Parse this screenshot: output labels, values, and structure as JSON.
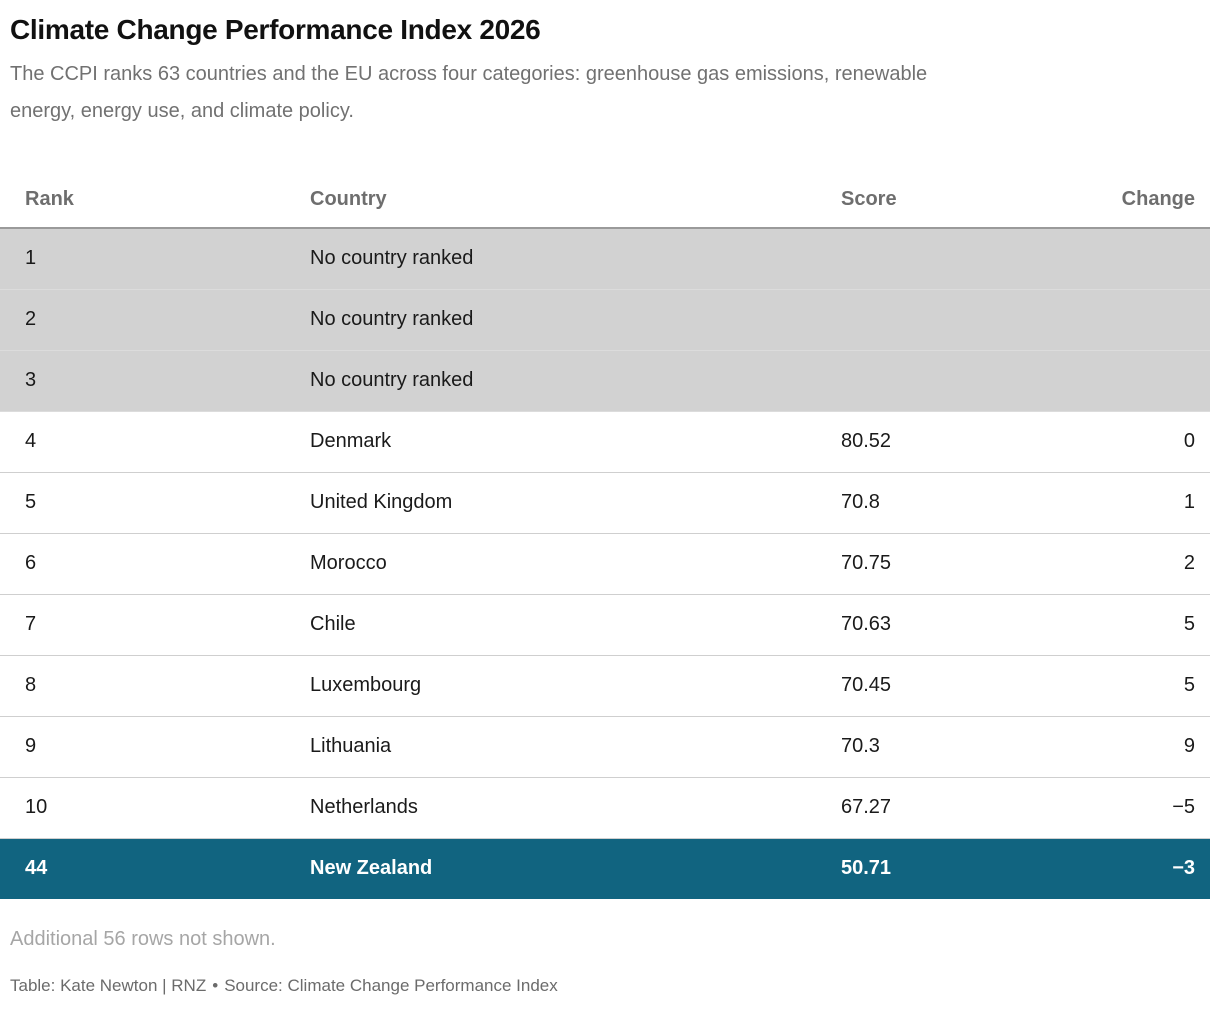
{
  "header": {
    "title": "Climate Change Performance Index 2026",
    "subtitle_lines": [
      "The CCPI ranks 63 countries and the EU across four categories: greenhouse gas emissions, renewable",
      "energy, energy use, and climate policy."
    ]
  },
  "chart_data": {
    "type": "table",
    "title": "Climate Change Performance Index 2026",
    "columns": [
      "Rank",
      "Country",
      "Score",
      "Change"
    ],
    "rows": [
      {
        "rank": "1",
        "country": "No country ranked",
        "score": "",
        "change": "",
        "style": "unranked"
      },
      {
        "rank": "2",
        "country": "No country ranked",
        "score": "",
        "change": "",
        "style": "unranked"
      },
      {
        "rank": "3",
        "country": "No country ranked",
        "score": "",
        "change": "",
        "style": "unranked"
      },
      {
        "rank": "4",
        "country": "Denmark",
        "score": "80.52",
        "change": "0",
        "style": "normal"
      },
      {
        "rank": "5",
        "country": "United Kingdom",
        "score": "70.8",
        "change": "1",
        "style": "normal"
      },
      {
        "rank": "6",
        "country": "Morocco",
        "score": "70.75",
        "change": "2",
        "style": "normal"
      },
      {
        "rank": "7",
        "country": "Chile",
        "score": "70.63",
        "change": "5",
        "style": "normal"
      },
      {
        "rank": "8",
        "country": "Luxembourg",
        "score": "70.45",
        "change": "5",
        "style": "normal"
      },
      {
        "rank": "9",
        "country": "Lithuania",
        "score": "70.3",
        "change": "9",
        "style": "normal"
      },
      {
        "rank": "10",
        "country": "Netherlands",
        "score": "67.27",
        "change": "−5",
        "style": "normal"
      },
      {
        "rank": "44",
        "country": "New Zealand",
        "score": "50.71",
        "change": "−3",
        "style": "highlight"
      }
    ]
  },
  "footer": {
    "note": "Additional 56 rows not shown.",
    "credit_table": "Table: Kate Newton | RNZ",
    "credit_separator": "•",
    "credit_source": "Source: Climate Change Performance Index"
  },
  "colors": {
    "highlight_row": "#116480",
    "unranked_row": "#d2d2d2",
    "header_text": "#6e6e6e",
    "body_text": "#1a1a1a"
  }
}
